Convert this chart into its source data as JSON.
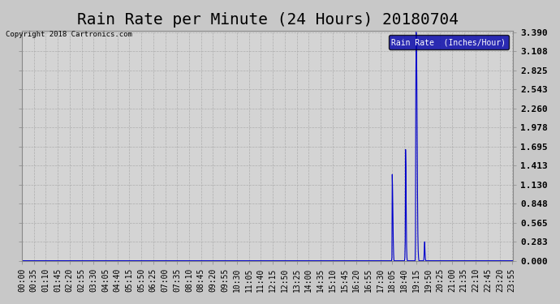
{
  "title": "Rain Rate per Minute (24 Hours) 20180704",
  "copyright_text": "Copyright 2018 Cartronics.com",
  "legend_label": "Rain Rate  (Inches/Hour)",
  "background_color": "#c8c8c8",
  "plot_bg_color": "#d4d4d4",
  "line_color": "#0000cc",
  "legend_bg_color": "#0000aa",
  "legend_text_color": "#ffffff",
  "yticks": [
    0.0,
    0.283,
    0.565,
    0.848,
    1.13,
    1.413,
    1.695,
    1.978,
    2.26,
    2.543,
    2.825,
    3.108,
    3.39
  ],
  "ymax": 3.39,
  "ymin": 0.0,
  "total_minutes": 1440,
  "title_fontsize": 14,
  "tick_fontsize": 7
}
